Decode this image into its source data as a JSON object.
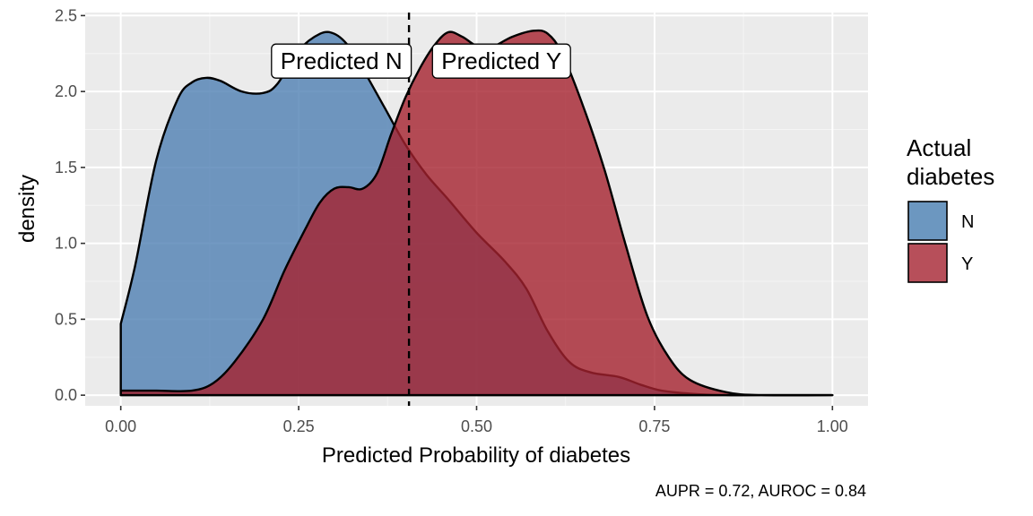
{
  "chart_data": {
    "type": "area",
    "title": "",
    "xlabel": "Predicted Probability of diabetes",
    "ylabel": "density",
    "xlim": [
      -0.05,
      1.05
    ],
    "ylim": [
      -0.07,
      2.52
    ],
    "xticks": [
      0.0,
      0.25,
      0.5,
      0.75,
      1.0
    ],
    "xtick_labels": [
      "0.00",
      "0.25",
      "0.50",
      "0.75",
      "1.00"
    ],
    "yticks": [
      0.0,
      0.5,
      1.0,
      1.5,
      2.0,
      2.5
    ],
    "ytick_labels": [
      "0.0",
      "0.5",
      "1.0",
      "1.5",
      "2.0",
      "2.5"
    ],
    "grid": true,
    "legend": {
      "title_lines": [
        "Actual",
        "diabetes"
      ],
      "position": "right",
      "entries": [
        {
          "label": "N",
          "color": "#4F7FB3"
        },
        {
          "label": "Y",
          "color": "#A5222E"
        }
      ]
    },
    "series": [
      {
        "name": "N",
        "color": "#4F7FB3",
        "x": [
          0.0,
          0.02,
          0.05,
          0.08,
          0.1,
          0.12,
          0.14,
          0.17,
          0.2,
          0.22,
          0.25,
          0.28,
          0.3,
          0.32,
          0.34,
          0.37,
          0.4,
          0.43,
          0.46,
          0.5,
          0.54,
          0.57,
          0.6,
          0.63,
          0.66,
          0.7,
          0.73,
          0.76,
          0.8,
          0.85,
          0.9,
          1.0
        ],
        "y": [
          0.47,
          0.85,
          1.55,
          1.95,
          2.06,
          2.09,
          2.07,
          2.0,
          1.99,
          2.05,
          2.27,
          2.38,
          2.38,
          2.3,
          2.15,
          1.9,
          1.65,
          1.45,
          1.29,
          1.07,
          0.88,
          0.7,
          0.42,
          0.22,
          0.15,
          0.12,
          0.07,
          0.03,
          0.01,
          0.0,
          0.0,
          0.0
        ]
      },
      {
        "name": "Y",
        "color": "#A5222E",
        "x": [
          0.0,
          0.05,
          0.1,
          0.13,
          0.16,
          0.2,
          0.23,
          0.26,
          0.28,
          0.3,
          0.32,
          0.34,
          0.36,
          0.38,
          0.4,
          0.42,
          0.44,
          0.46,
          0.48,
          0.5,
          0.52,
          0.55,
          0.58,
          0.6,
          0.62,
          0.65,
          0.68,
          0.71,
          0.74,
          0.77,
          0.8,
          0.85,
          0.9,
          1.0
        ],
        "y": [
          0.03,
          0.03,
          0.03,
          0.08,
          0.22,
          0.5,
          0.82,
          1.1,
          1.27,
          1.36,
          1.37,
          1.36,
          1.46,
          1.72,
          1.96,
          2.15,
          2.3,
          2.39,
          2.36,
          2.3,
          2.29,
          2.36,
          2.4,
          2.38,
          2.25,
          1.9,
          1.48,
          0.98,
          0.52,
          0.25,
          0.1,
          0.02,
          0.0,
          0.0
        ]
      }
    ],
    "threshold": 0.405,
    "annotations": [
      {
        "text": "Predicted N",
        "x": 0.31,
        "y": 2.2
      },
      {
        "text": "Predicted Y",
        "x": 0.535,
        "y": 2.2
      }
    ],
    "caption": "AUPR = 0.72, AUROC = 0.84"
  }
}
